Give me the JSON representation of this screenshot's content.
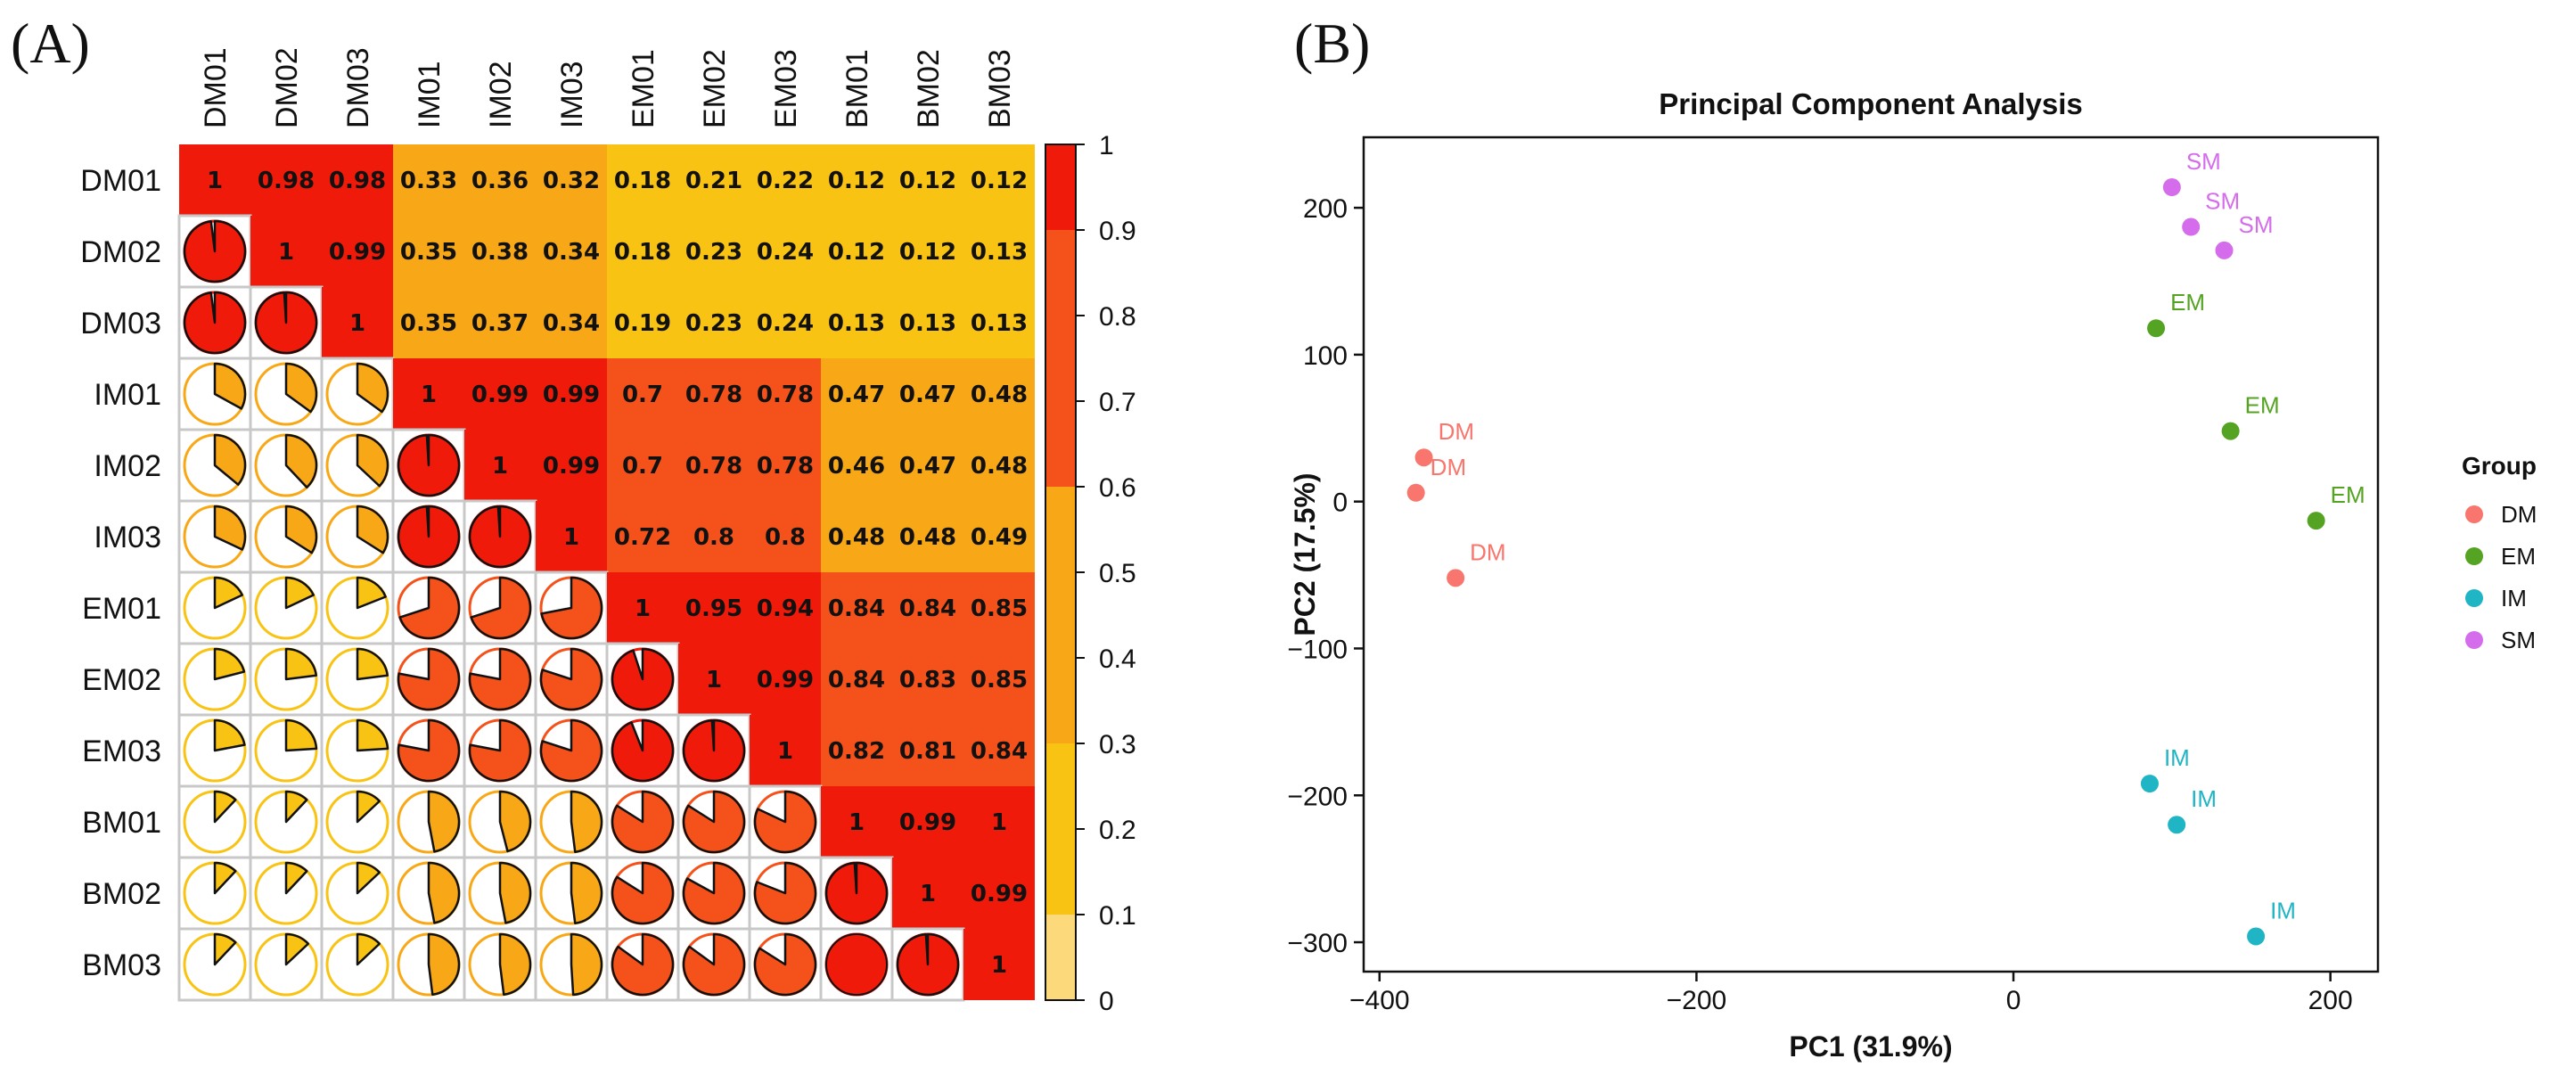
{
  "panel_labels": {
    "a": "(A)",
    "b": "(B)"
  },
  "chart_data": [
    {
      "type": "heatmap",
      "title": "",
      "style": "correlogram: upper triangle shows numbers on colored cells, lower triangle shows pie glyphs, diagonal = 1",
      "categories": [
        "DM01",
        "DM02",
        "DM03",
        "IM01",
        "IM02",
        "IM03",
        "EM01",
        "EM02",
        "EM03",
        "BM01",
        "BM02",
        "BM03"
      ],
      "values": [
        [
          1,
          0.98,
          0.98,
          0.33,
          0.36,
          0.32,
          0.18,
          0.21,
          0.22,
          0.12,
          0.12,
          0.12
        ],
        [
          0.98,
          1,
          0.99,
          0.35,
          0.38,
          0.34,
          0.18,
          0.23,
          0.24,
          0.12,
          0.12,
          0.13
        ],
        [
          0.98,
          0.99,
          1,
          0.35,
          0.37,
          0.34,
          0.19,
          0.23,
          0.24,
          0.13,
          0.13,
          0.13
        ],
        [
          0.33,
          0.35,
          0.35,
          1,
          0.99,
          0.99,
          0.7,
          0.78,
          0.78,
          0.47,
          0.47,
          0.48
        ],
        [
          0.36,
          0.38,
          0.37,
          0.99,
          1,
          0.99,
          0.7,
          0.78,
          0.78,
          0.46,
          0.47,
          0.48
        ],
        [
          0.32,
          0.34,
          0.34,
          0.99,
          0.99,
          1,
          0.72,
          0.8,
          0.8,
          0.48,
          0.48,
          0.49
        ],
        [
          0.18,
          0.18,
          0.19,
          0.7,
          0.7,
          0.72,
          1,
          0.95,
          0.94,
          0.84,
          0.84,
          0.85
        ],
        [
          0.21,
          0.23,
          0.23,
          0.78,
          0.78,
          0.8,
          0.95,
          1,
          0.99,
          0.84,
          0.83,
          0.85
        ],
        [
          0.22,
          0.24,
          0.24,
          0.78,
          0.78,
          0.8,
          0.94,
          0.99,
          1,
          0.82,
          0.81,
          0.84
        ],
        [
          0.12,
          0.12,
          0.13,
          0.47,
          0.46,
          0.48,
          0.84,
          0.84,
          0.82,
          1,
          0.99,
          1
        ],
        [
          0.12,
          0.12,
          0.13,
          0.47,
          0.47,
          0.48,
          0.84,
          0.83,
          0.81,
          0.99,
          1,
          0.99
        ],
        [
          0.12,
          0.13,
          0.13,
          0.48,
          0.48,
          0.49,
          0.85,
          0.85,
          0.84,
          1,
          0.99,
          1
        ]
      ],
      "colorbar": {
        "range": [
          0,
          1
        ],
        "ticks": [
          "0",
          "0.1",
          "0.2",
          "0.3",
          "0.4",
          "0.5",
          "0.6",
          "0.7",
          "0.8",
          "0.9",
          "1"
        ],
        "bins": [
          {
            "from": 0,
            "to": 0.1,
            "color": "#FCD97A"
          },
          {
            "from": 0.1,
            "to": 0.3,
            "color": "#F9C313"
          },
          {
            "from": 0.3,
            "to": 0.6,
            "color": "#F8A816"
          },
          {
            "from": 0.6,
            "to": 0.9,
            "color": "#F4521A"
          },
          {
            "from": 0.9,
            "to": 1.0,
            "color": "#F01A0A"
          }
        ]
      }
    },
    {
      "type": "scatter",
      "title": "Principal Component Analysis",
      "xlabel": "PC1 (31.9%)",
      "ylabel": "PC2 (17.5%)",
      "xlim": [
        -410,
        230
      ],
      "ylim": [
        -320,
        248
      ],
      "xticks": [
        -400,
        -200,
        0,
        200
      ],
      "yticks": [
        -300,
        -200,
        -100,
        0,
        100,
        200
      ],
      "grid": false,
      "legend": {
        "title": "Group",
        "position": "right"
      },
      "series": [
        {
          "name": "DM",
          "color": "#F8766D",
          "points": [
            [
              -372,
              30
            ],
            [
              -377,
              6
            ],
            [
              -352,
              -52
            ]
          ]
        },
        {
          "name": "EM",
          "color": "#54A322",
          "points": [
            [
              90,
              118
            ],
            [
              137,
              48
            ],
            [
              191,
              -13
            ]
          ]
        },
        {
          "name": "IM",
          "color": "#1FB5C4",
          "points": [
            [
              86,
              -192
            ],
            [
              103,
              -220
            ],
            [
              153,
              -296
            ]
          ]
        },
        {
          "name": "SM",
          "color": "#D56CEB",
          "points": [
            [
              100,
              214
            ],
            [
              112,
              187
            ],
            [
              133,
              171
            ]
          ]
        }
      ]
    }
  ]
}
